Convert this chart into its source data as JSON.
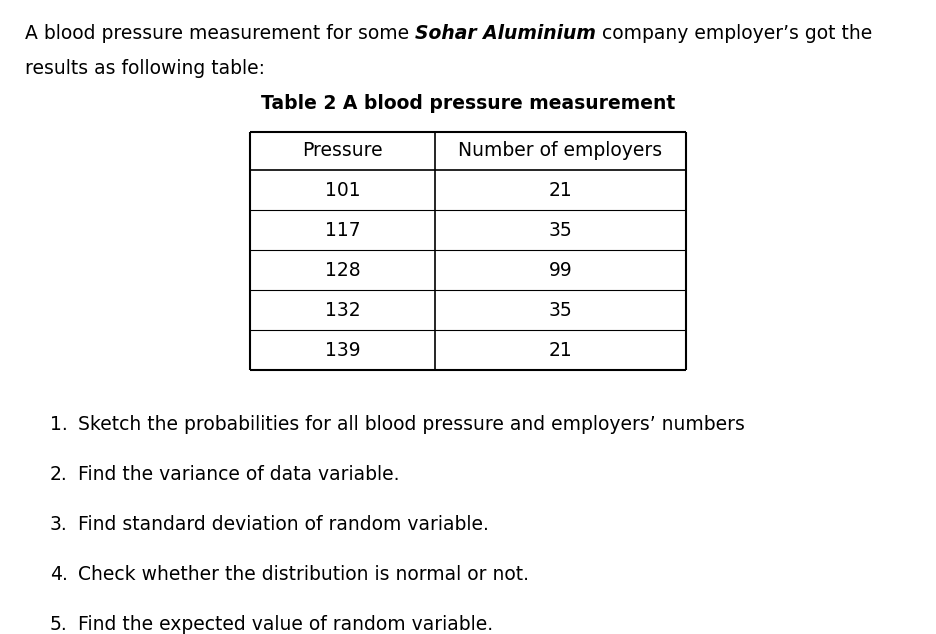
{
  "intro_line1_normal": "A blood pressure measurement for some ",
  "intro_line1_bold_italic": "Sohar Aluminium",
  "intro_line1_end": " company employer’s got the",
  "intro_line2": "results as following table:",
  "table_title": "Table 2 A blood pressure measurement",
  "col1_header": "Pressure",
  "col2_header": "Number of employers",
  "pressures": [
    101,
    117,
    128,
    132,
    139
  ],
  "employers": [
    21,
    35,
    99,
    35,
    21
  ],
  "questions": [
    "Sketch the probabilities for all blood pressure and employers’ numbers",
    "Find the variance of data variable.",
    "Find standard deviation of random variable.",
    "Check whether the distribution is normal or not.",
    "Find the expected value of random variable."
  ],
  "bg_color": "#ffffff",
  "text_color": "#000000",
  "font_size_body": 13.5,
  "font_size_table_title": 13.5,
  "font_size_table_content": 13.5
}
